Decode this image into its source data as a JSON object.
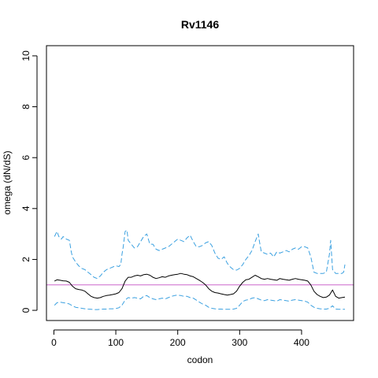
{
  "chart_data": {
    "type": "line",
    "title": "Rv1146",
    "xlabel": "codon",
    "ylabel": "omega (dN/dS)",
    "xlim": [
      -12,
      484
    ],
    "ylim": [
      -0.4,
      10.4
    ],
    "x_ticks": [
      0,
      100,
      200,
      300,
      400
    ],
    "y_ticks": [
      0,
      2,
      4,
      6,
      8,
      10
    ],
    "grid": false,
    "legend": "none",
    "reference_line": {
      "y": 1,
      "color": "#cc66cc"
    },
    "colors": {
      "omega": "#000000",
      "bounds": "#3aa0e0"
    },
    "series": [
      {
        "role": "omega",
        "style": "solid",
        "x": [
          1,
          5,
          10,
          15,
          20,
          25,
          30,
          35,
          40,
          45,
          50,
          55,
          60,
          65,
          70,
          75,
          80,
          85,
          90,
          95,
          100,
          105,
          110,
          115,
          120,
          125,
          130,
          135,
          140,
          145,
          150,
          155,
          160,
          165,
          170,
          175,
          180,
          185,
          190,
          195,
          200,
          205,
          210,
          215,
          220,
          225,
          230,
          235,
          240,
          245,
          250,
          255,
          260,
          265,
          270,
          275,
          280,
          285,
          290,
          295,
          300,
          305,
          310,
          315,
          320,
          325,
          330,
          335,
          340,
          345,
          350,
          355,
          360,
          365,
          370,
          375,
          380,
          385,
          390,
          395,
          400,
          405,
          410,
          415,
          420,
          425,
          430,
          435,
          440,
          445,
          450,
          455,
          460,
          465,
          470
        ],
        "y": [
          1.15,
          1.2,
          1.18,
          1.16,
          1.15,
          1.1,
          0.95,
          0.85,
          0.82,
          0.8,
          0.75,
          0.65,
          0.55,
          0.5,
          0.48,
          0.5,
          0.55,
          0.58,
          0.6,
          0.62,
          0.65,
          0.7,
          0.85,
          1.15,
          1.3,
          1.3,
          1.35,
          1.38,
          1.35,
          1.4,
          1.42,
          1.38,
          1.3,
          1.25,
          1.28,
          1.32,
          1.3,
          1.35,
          1.38,
          1.4,
          1.42,
          1.45,
          1.42,
          1.4,
          1.35,
          1.32,
          1.25,
          1.18,
          1.1,
          1.0,
          0.85,
          0.75,
          0.7,
          0.68,
          0.65,
          0.62,
          0.6,
          0.62,
          0.65,
          0.75,
          0.95,
          1.1,
          1.2,
          1.22,
          1.3,
          1.38,
          1.32,
          1.25,
          1.22,
          1.25,
          1.22,
          1.2,
          1.18,
          1.25,
          1.22,
          1.2,
          1.18,
          1.22,
          1.25,
          1.22,
          1.2,
          1.18,
          1.15,
          1.0,
          0.75,
          0.62,
          0.55,
          0.5,
          0.52,
          0.6,
          0.8,
          0.55,
          0.48,
          0.5,
          0.52
        ]
      },
      {
        "role": "upper",
        "style": "dashed",
        "x": [
          1,
          3,
          5,
          8,
          10,
          12,
          15,
          20,
          25,
          28,
          30,
          35,
          40,
          45,
          50,
          55,
          60,
          65,
          70,
          75,
          80,
          85,
          90,
          95,
          100,
          105,
          108,
          110,
          112,
          115,
          118,
          120,
          125,
          130,
          135,
          140,
          145,
          150,
          155,
          160,
          165,
          170,
          175,
          180,
          185,
          190,
          195,
          200,
          205,
          210,
          215,
          220,
          225,
          230,
          235,
          240,
          245,
          250,
          255,
          260,
          265,
          270,
          275,
          280,
          285,
          290,
          295,
          300,
          305,
          310,
          315,
          320,
          325,
          330,
          332,
          335,
          340,
          345,
          350,
          355,
          360,
          365,
          370,
          375,
          380,
          385,
          390,
          395,
          400,
          405,
          410,
          415,
          420,
          425,
          430,
          435,
          440,
          445,
          447,
          450,
          455,
          460,
          465,
          468,
          470
        ],
        "y": [
          2.9,
          3.0,
          3.1,
          2.9,
          2.85,
          2.8,
          2.9,
          2.8,
          2.75,
          2.3,
          2.1,
          1.9,
          1.75,
          1.65,
          1.6,
          1.5,
          1.4,
          1.3,
          1.25,
          1.35,
          1.5,
          1.6,
          1.65,
          1.7,
          1.75,
          1.72,
          1.8,
          2.2,
          2.5,
          3.1,
          3.15,
          2.75,
          2.6,
          2.45,
          2.5,
          2.7,
          2.9,
          3.0,
          2.6,
          2.6,
          2.4,
          2.35,
          2.4,
          2.45,
          2.5,
          2.6,
          2.7,
          2.8,
          2.75,
          2.7,
          2.85,
          2.95,
          2.7,
          2.5,
          2.5,
          2.55,
          2.65,
          2.7,
          2.55,
          2.25,
          2.05,
          2.0,
          2.1,
          1.85,
          1.7,
          1.6,
          1.58,
          1.65,
          1.8,
          2.0,
          2.15,
          2.35,
          2.7,
          3.0,
          2.7,
          2.3,
          2.25,
          2.2,
          2.25,
          2.1,
          2.3,
          2.25,
          2.3,
          2.35,
          2.3,
          2.4,
          2.45,
          2.4,
          2.5,
          2.5,
          2.45,
          2.1,
          1.5,
          1.45,
          1.45,
          1.45,
          1.5,
          2.2,
          2.75,
          1.6,
          1.45,
          1.45,
          1.45,
          1.5,
          1.8
        ]
      },
      {
        "role": "lower",
        "style": "dashed",
        "x": [
          1,
          5,
          10,
          15,
          20,
          25,
          30,
          35,
          40,
          45,
          50,
          55,
          60,
          65,
          70,
          75,
          80,
          85,
          90,
          95,
          100,
          105,
          110,
          115,
          120,
          125,
          130,
          135,
          140,
          145,
          150,
          155,
          160,
          165,
          170,
          175,
          180,
          185,
          190,
          195,
          200,
          205,
          210,
          215,
          220,
          225,
          230,
          235,
          240,
          245,
          250,
          255,
          260,
          265,
          270,
          275,
          280,
          285,
          290,
          295,
          300,
          305,
          310,
          315,
          320,
          325,
          330,
          335,
          340,
          345,
          350,
          355,
          360,
          365,
          370,
          375,
          380,
          385,
          390,
          395,
          400,
          405,
          410,
          415,
          420,
          425,
          430,
          435,
          440,
          445,
          450,
          455,
          460,
          465,
          470
        ],
        "y": [
          0.2,
          0.3,
          0.32,
          0.3,
          0.28,
          0.25,
          0.18,
          0.12,
          0.1,
          0.08,
          0.06,
          0.05,
          0.04,
          0.03,
          0.03,
          0.04,
          0.05,
          0.05,
          0.06,
          0.06,
          0.07,
          0.1,
          0.2,
          0.4,
          0.5,
          0.48,
          0.5,
          0.48,
          0.45,
          0.55,
          0.58,
          0.5,
          0.45,
          0.42,
          0.45,
          0.48,
          0.45,
          0.5,
          0.55,
          0.58,
          0.6,
          0.58,
          0.55,
          0.55,
          0.5,
          0.48,
          0.4,
          0.32,
          0.25,
          0.2,
          0.12,
          0.08,
          0.06,
          0.05,
          0.05,
          0.04,
          0.04,
          0.04,
          0.05,
          0.08,
          0.2,
          0.35,
          0.4,
          0.42,
          0.48,
          0.5,
          0.45,
          0.4,
          0.38,
          0.42,
          0.4,
          0.38,
          0.36,
          0.42,
          0.4,
          0.38,
          0.36,
          0.4,
          0.42,
          0.4,
          0.38,
          0.36,
          0.32,
          0.2,
          0.12,
          0.08,
          0.06,
          0.05,
          0.05,
          0.08,
          0.18,
          0.05,
          0.04,
          0.04,
          0.04
        ]
      }
    ]
  }
}
